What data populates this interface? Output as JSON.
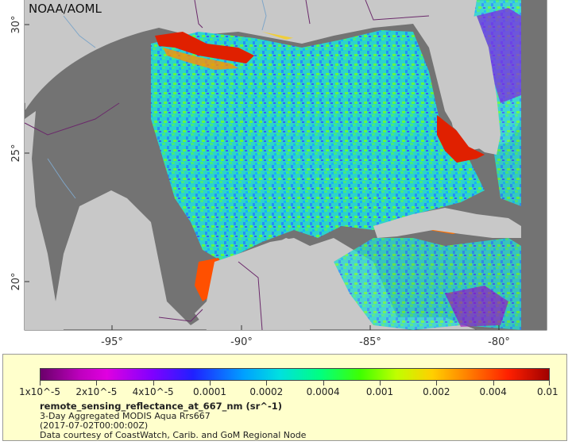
{
  "map": {
    "organization": "NOAA/AOML",
    "lat_ticks": [
      "30°",
      "25°",
      "20°"
    ],
    "lon_ticks": [
      "-95°",
      "-90°",
      "-85°",
      "-80°"
    ],
    "colors": {
      "land": "#c8c8c8",
      "no_data": "#737373",
      "border": "#6b2a6b",
      "river": "#7fa6c8"
    }
  },
  "legend": {
    "scale_labels": [
      "1x10^-5",
      "2x10^-5",
      "4x10^-5",
      "0.0001",
      "0.0002",
      "0.0004",
      "0.001",
      "0.002",
      "0.004",
      "0.01"
    ],
    "variable": "remote_sensing_reflectance_at_667_nm (sr^-1)",
    "dataset": "3-Day Aggregated MODIS Aqua Rrs667",
    "time": "(2017-07-02T00:00:00Z)",
    "credit": "Data courtesy of CoastWatch, Carib. and GoM Regional Node",
    "colormap": "Rainbow2",
    "scale": "log"
  }
}
